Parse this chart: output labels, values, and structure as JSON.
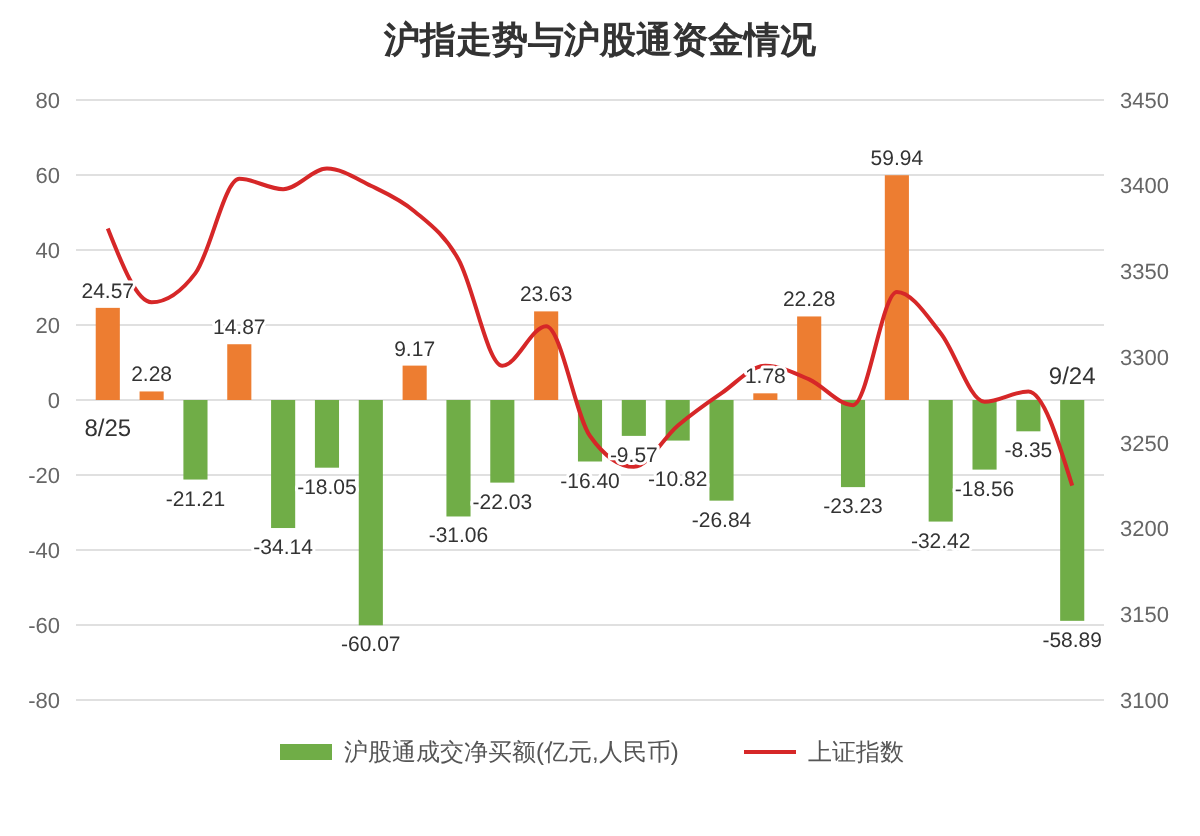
{
  "chart_data": {
    "type": "bar",
    "title": "沪指走势与沪股通资金情况",
    "categories": [
      "8/25",
      null,
      null,
      null,
      null,
      null,
      null,
      null,
      null,
      null,
      null,
      null,
      null,
      null,
      null,
      null,
      null,
      null,
      null,
      null,
      null,
      null,
      "9/24"
    ],
    "series": [
      {
        "name": "沪股通成交净买额(亿元,人民币)",
        "color": "#70ad47",
        "colors": [
          "#ed7d31",
          "#ed7d31",
          "#70ad47",
          "#ed7d31",
          "#70ad47",
          "#70ad47",
          "#70ad47",
          "#ed7d31",
          "#70ad47",
          "#70ad47",
          "#ed7d31",
          "#70ad47",
          "#70ad47",
          "#70ad47",
          "#70ad47",
          "#ed7d31",
          "#ed7d31",
          "#70ad47",
          "#ed7d31",
          "#70ad47",
          "#70ad47",
          "#70ad47",
          "#70ad47"
        ],
        "values": [
          24.57,
          2.28,
          -21.21,
          14.87,
          -34.14,
          -18.05,
          -60.07,
          9.17,
          -31.06,
          -22.03,
          23.63,
          -16.4,
          -9.57,
          -10.82,
          -26.84,
          1.78,
          22.28,
          -23.23,
          59.94,
          -32.42,
          -18.56,
          -8.35,
          -58.89
        ],
        "value_labels": [
          "24.57",
          "2.28",
          "-21.21",
          "14.87",
          "-34.14",
          "-18.05",
          "-60.07",
          "9.17",
          "-31.06",
          "-22.03",
          "23.63",
          "-16.40",
          "-9.57",
          "-10.82",
          "-26.84",
          "1.78",
          "22.28",
          "-23.23",
          "59.94",
          "-32.42",
          "-18.56",
          "-8.35",
          "-58.89"
        ]
      },
      {
        "name": "上证指数",
        "type": "line",
        "axis": "y2",
        "color": "#d62728",
        "values": [
          3375,
          3332,
          3349,
          3404,
          3398,
          3410,
          3400,
          3385,
          3357,
          3295,
          3318,
          3254,
          3236,
          3260,
          3279,
          3295,
          3287,
          3272,
          3338,
          3314,
          3274,
          3280,
          3225
        ]
      }
    ],
    "ylim": [
      -80,
      80
    ],
    "yticks": [
      -80,
      -60,
      -40,
      -20,
      0,
      20,
      40,
      60,
      80
    ],
    "y2lim": [
      3100,
      3450
    ],
    "y2ticks": [
      3100,
      3150,
      3200,
      3250,
      3300,
      3350,
      3400,
      3450
    ],
    "grid": "y",
    "legend": "bottom"
  }
}
